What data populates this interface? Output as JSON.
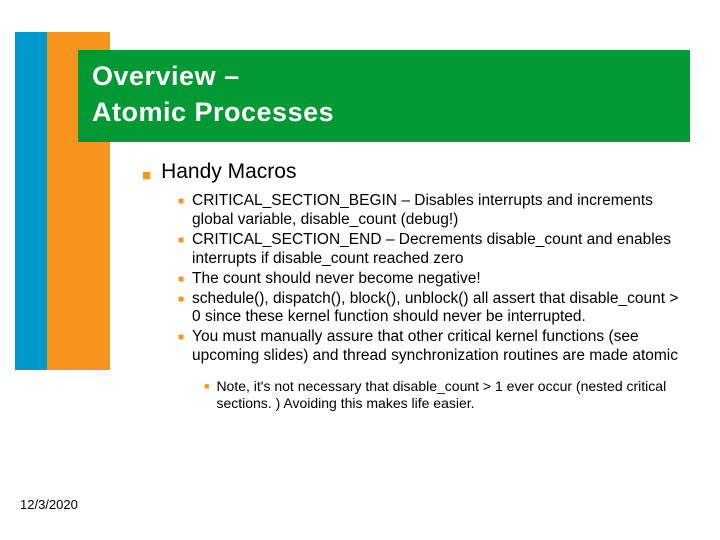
{
  "colors": {
    "blue": "#0099cc",
    "orange": "#f7941e",
    "green": "#009933",
    "black": "#000000",
    "white": "#ffffff"
  },
  "title": {
    "line1": "Overview –",
    "line2": "Atomic Processes"
  },
  "mainBullet": "Handy Macros",
  "subBullets": [
    "CRITICAL_SECTION_BEGIN – Disables interrupts and increments global variable, disable_count (debug!)",
    "CRITICAL_SECTION_END – Decrements disable_count and enables interrupts if disable_count reached zero",
    "The count should never become negative!",
    "schedule(), dispatch(), block(), unblock() all assert that disable_count > 0 since these kernel function should never be interrupted.",
    "You must manually assure that other critical kernel functions (see upcoming slides) and thread synchronization routines are made atomic"
  ],
  "noteBullet": "Note, it's not necessary that disable_count > 1 ever occur (nested critical sections. ) Avoiding this makes life easier.",
  "date": "12/3/2020",
  "bulletGlyph": "■"
}
